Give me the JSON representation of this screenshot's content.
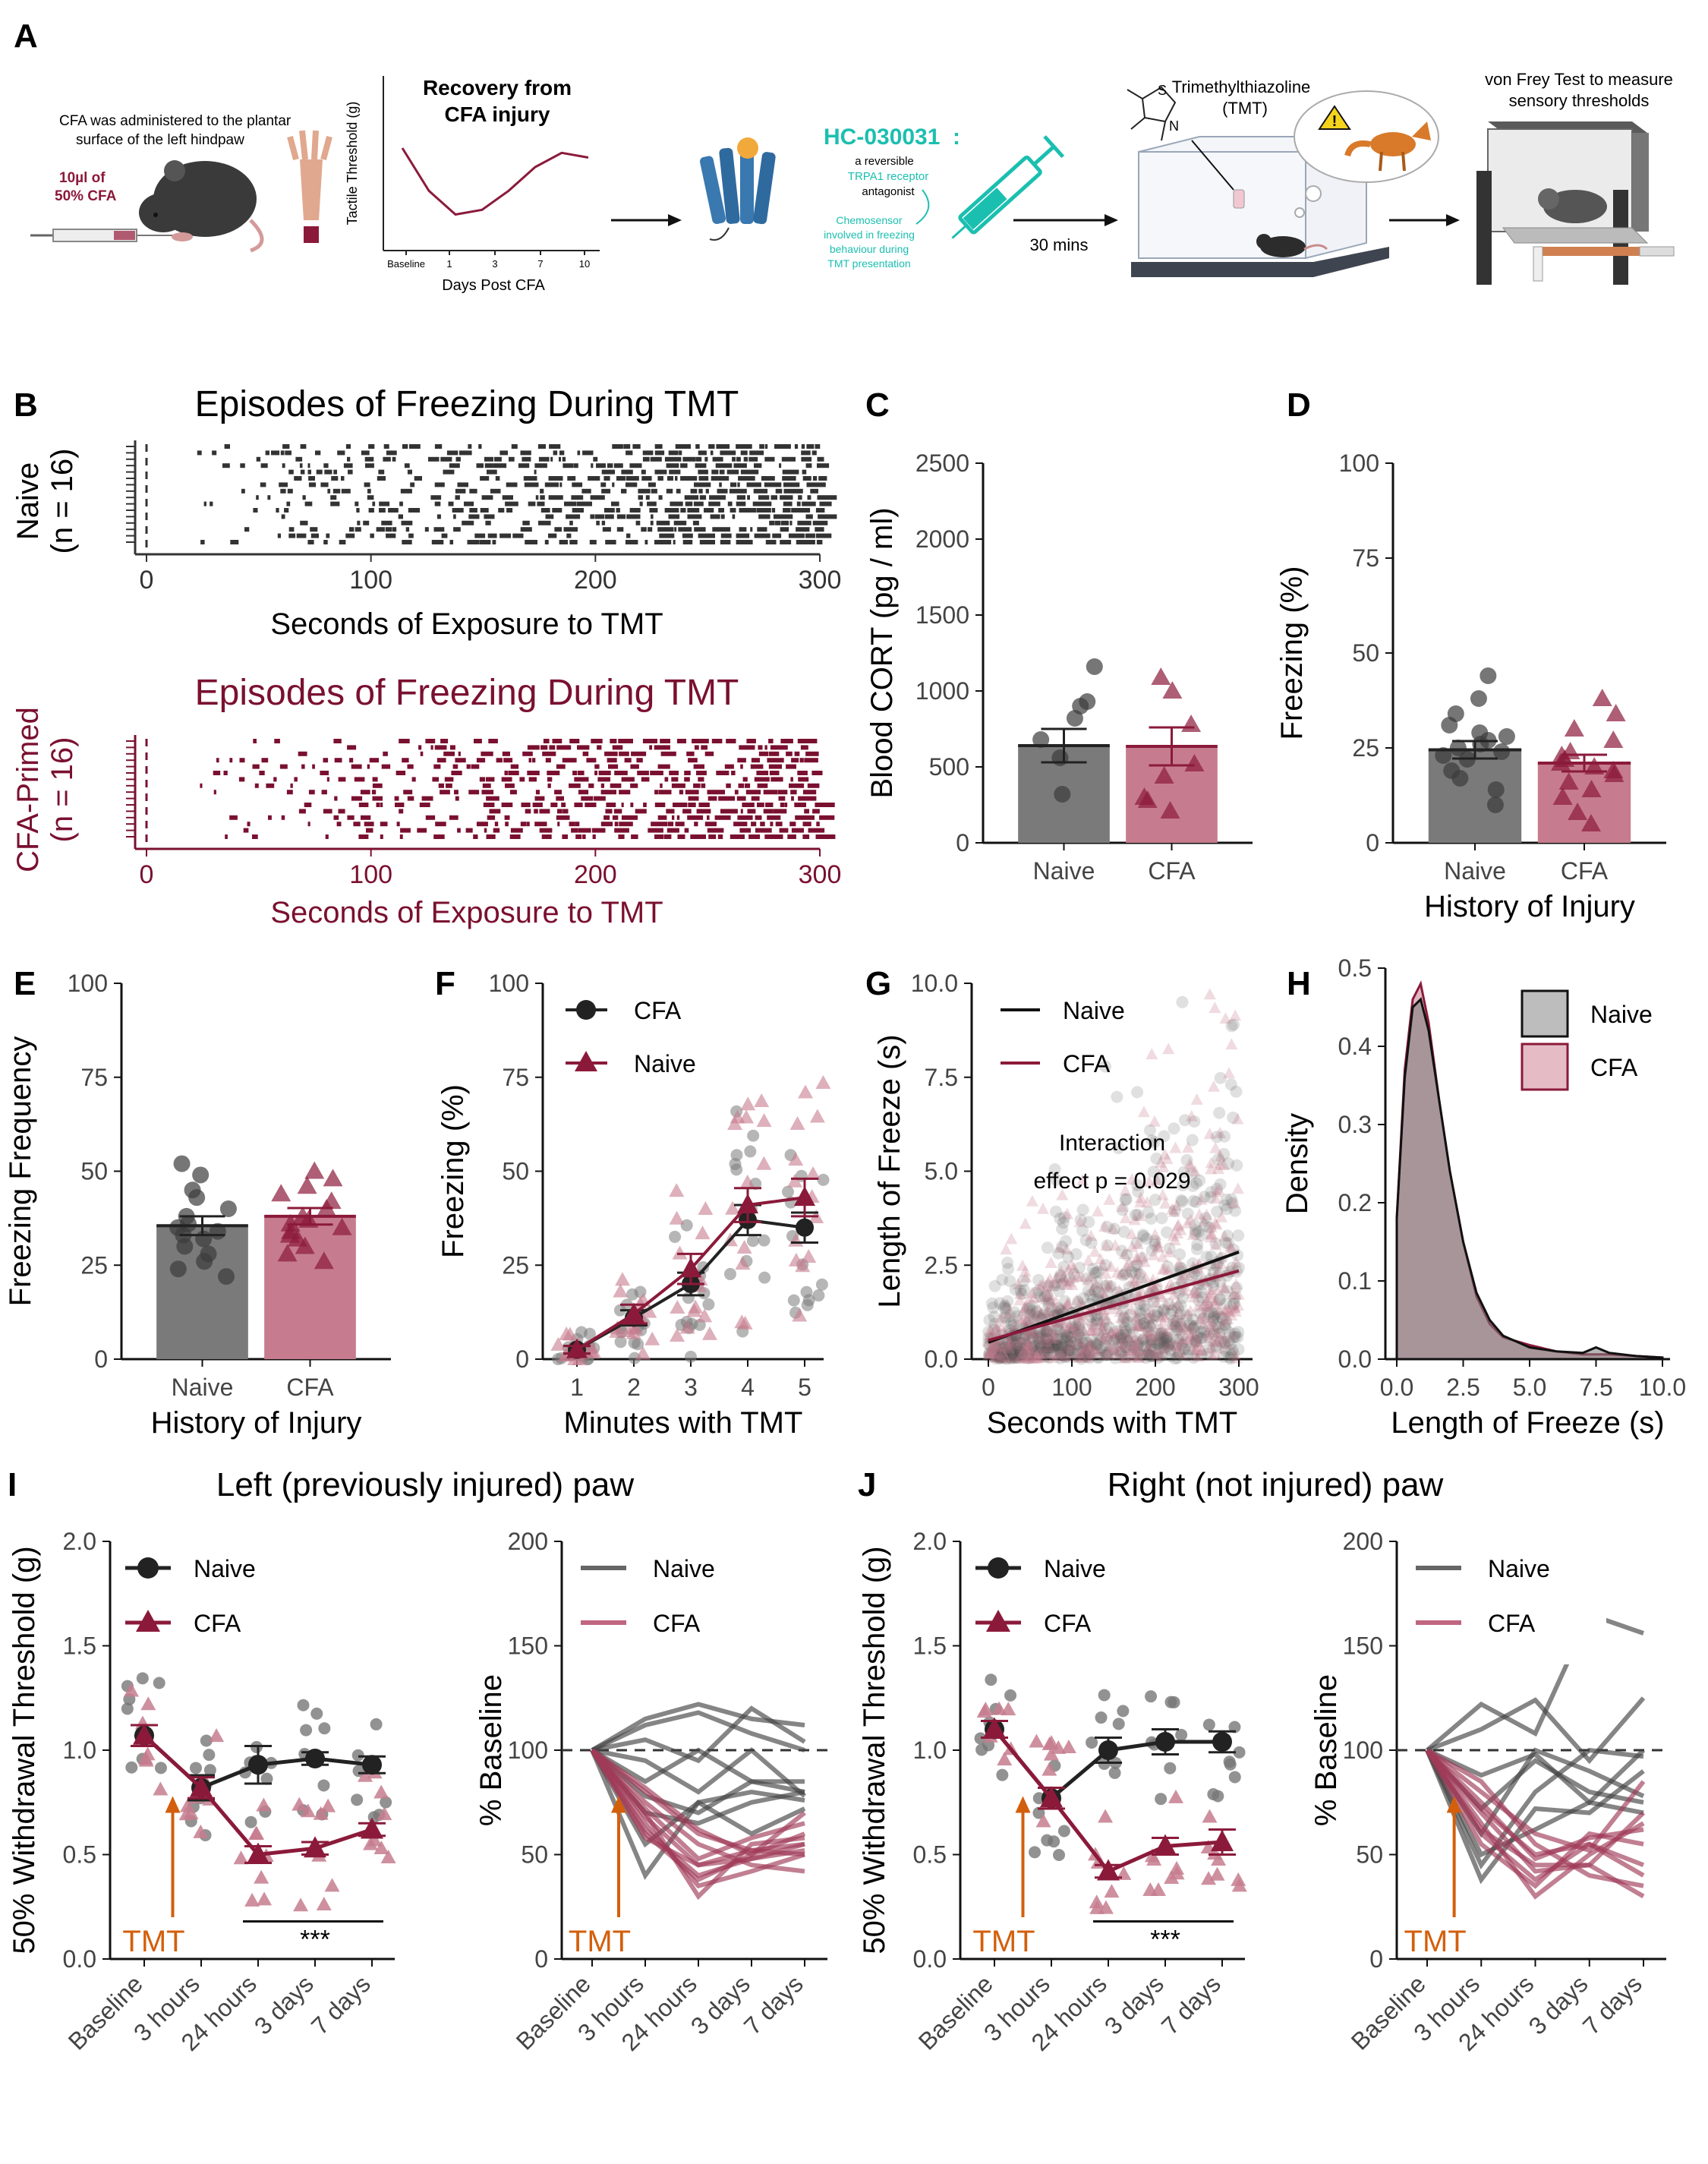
{
  "figure": {
    "panel_letters": [
      "A",
      "B",
      "C",
      "D",
      "E",
      "F",
      "G",
      "H",
      "I",
      "J"
    ],
    "colors": {
      "naive": "#3c3c3c",
      "cfa": "#8b1a3a",
      "naive_fill": "#7a7a7a",
      "cfa_fill": "#c67c8e",
      "tmt": "#d35f0c",
      "teal": "#1bbfb0",
      "dark_red": "#7a1030"
    }
  },
  "schematic": {
    "cfa_text_1": "CFA was administered to the plantar",
    "cfa_text_2": "surface of the left hindpaw",
    "cfa_word": "CFA",
    "dose_1": "10µl of",
    "dose_2": "50% CFA",
    "recovery_title_1": "Recovery from",
    "recovery_title_2": "CFA injury",
    "recovery_ylabel": "Tactile Threshold (g)",
    "recovery_xlabel": "Days Post CFA",
    "recovery_ticks": [
      "Baseline",
      "1",
      "3",
      "7",
      "10"
    ],
    "recovery_curve": [
      1.0,
      0.55,
      0.3,
      0.35,
      0.55,
      0.8,
      0.95,
      0.9
    ],
    "drug_name": "HC-030031",
    "drug_colon": ":",
    "drug_desc_1": "a reversible",
    "drug_desc_2": "TRPA1 receptor",
    "drug_desc_3": "antagonist",
    "chemo_1": "Chemosensor",
    "chemo_2": "involved in freezing",
    "chemo_3": "behaviour during",
    "chemo_4": "TMT presentation",
    "wait_label": "30 mins",
    "tmt_title_1": "Trimethylthiazoline",
    "tmt_title_2": "(TMT)",
    "atom_s": "S",
    "atom_n": "N",
    "warning_mark": "!",
    "vonfrey_1": "von Frey Test to measure",
    "vonfrey_2": "sensory thresholds"
  },
  "chart_data": [
    {
      "id": "B-naive",
      "type": "raster",
      "title": "Episodes of Freezing During TMT",
      "ylabel_1": "Naive",
      "ylabel_2": "(n = 16)",
      "xlabel": "Seconds of Exposure to TMT",
      "xticks": [
        0,
        100,
        200,
        300
      ],
      "xlim": [
        0,
        300
      ],
      "n_rows": 16
    },
    {
      "id": "B-cfa",
      "type": "raster",
      "title": "Episodes of Freezing During TMT",
      "ylabel_1": "CFA-Primed",
      "ylabel_2": "(n = 16)",
      "xlabel": "Seconds of Exposure to TMT",
      "xticks": [
        0,
        100,
        200,
        300
      ],
      "xlim": [
        0,
        300
      ],
      "n_rows": 16
    },
    {
      "id": "C",
      "type": "bar",
      "ylabel": "Blood CORT (pg / ml)",
      "categories": [
        "Naive",
        "CFA"
      ],
      "values": [
        640,
        635
      ],
      "sem": [
        110,
        125
      ],
      "ylim": [
        0,
        2500
      ],
      "yticks": [
        0,
        500,
        1000,
        1500,
        2000,
        2500
      ],
      "points": [
        [
          1160,
          930,
          900,
          820,
          680,
          560,
          320
        ],
        [
          1090,
          1000,
          780,
          520,
          440,
          300,
          280,
          210
        ]
      ]
    },
    {
      "id": "D",
      "type": "bar",
      "ylabel": "Freezing (%)",
      "xlabel": "History of Injury",
      "categories": [
        "Naive",
        "CFA"
      ],
      "values": [
        24.5,
        21
      ],
      "sem": [
        2.3,
        2.2
      ],
      "ylim": [
        0,
        100
      ],
      "yticks": [
        0,
        25,
        50,
        75,
        100
      ],
      "points": [
        [
          44,
          38,
          34,
          31,
          29,
          28,
          27,
          26,
          25,
          24,
          23,
          22,
          19,
          17,
          14,
          10
        ],
        [
          38,
          34,
          30,
          27,
          24,
          23,
          22,
          21,
          20,
          19,
          18,
          16,
          14,
          12,
          8,
          5
        ]
      ]
    },
    {
      "id": "E",
      "type": "bar",
      "ylabel": "Freezing Frequency",
      "xlabel": "History of Injury",
      "categories": [
        "Naive",
        "CFA"
      ],
      "values": [
        35.5,
        38
      ],
      "sem": [
        2.5,
        2.2
      ],
      "ylim": [
        0,
        100
      ],
      "yticks": [
        0,
        25,
        50,
        75,
        100
      ],
      "points": [
        [
          52,
          49,
          45,
          43,
          40,
          38,
          36,
          35,
          34,
          33,
          32,
          30,
          28,
          26,
          24,
          22
        ],
        [
          50,
          48,
          46,
          44,
          42,
          40,
          38,
          37,
          36,
          35,
          34,
          33,
          32,
          30,
          28,
          26
        ]
      ]
    },
    {
      "id": "F",
      "type": "line",
      "ylabel": "Freezing (%)",
      "xlabel": "Minutes with TMT",
      "x": [
        1,
        2,
        3,
        4,
        5
      ],
      "ylim": [
        0,
        100
      ],
      "yticks": [
        0,
        25,
        50,
        75,
        100
      ],
      "legend_position": "top-left",
      "series": [
        {
          "name": "CFA",
          "values": [
            2.5,
            11,
            20,
            37,
            35
          ],
          "sem": [
            1,
            2,
            3,
            4,
            4
          ]
        },
        {
          "name": "Naive",
          "values": [
            2.5,
            12,
            24,
            41,
            43
          ],
          "sem": [
            1,
            2.5,
            4,
            4.5,
            5
          ]
        }
      ]
    },
    {
      "id": "G",
      "type": "scatter",
      "ylabel": "Length of Freeze (s)",
      "xlabel": "Seconds with TMT",
      "annotation_1": "Interaction",
      "annotation_2": "effect p = 0.029",
      "xlim": [
        0,
        300
      ],
      "ylim": [
        0,
        10
      ],
      "xticks": [
        0,
        100,
        200,
        300
      ],
      "yticks": [
        "0.0",
        "2.5",
        "5.0",
        "7.5",
        "10.0"
      ],
      "series": [
        {
          "name": "Naive",
          "fit": [
            [
              0,
              0.45
            ],
            [
              300,
              2.85
            ]
          ]
        },
        {
          "name": "CFA",
          "fit": [
            [
              0,
              0.5
            ],
            [
              300,
              2.35
            ]
          ]
        }
      ]
    },
    {
      "id": "H",
      "type": "area",
      "ylabel": "Density",
      "xlabel": "Length of Freeze (s)",
      "xlim": [
        0,
        10
      ],
      "ylim": [
        0,
        0.5
      ],
      "xticks": [
        "0.0",
        "2.5",
        "5.0",
        "7.5",
        "10.0"
      ],
      "yticks": [
        "0.0",
        "0.1",
        "0.2",
        "0.3",
        "0.4",
        "0.5"
      ],
      "x": [
        0,
        0.3,
        0.6,
        0.9,
        1.2,
        1.6,
        2.0,
        2.5,
        3.0,
        3.5,
        4.0,
        5.0,
        6.0,
        7.0,
        7.5,
        8.0,
        9.0,
        10.0
      ],
      "series": [
        {
          "name": "Naive",
          "values": [
            0.18,
            0.36,
            0.45,
            0.46,
            0.42,
            0.33,
            0.24,
            0.15,
            0.085,
            0.05,
            0.03,
            0.015,
            0.01,
            0.008,
            0.015,
            0.008,
            0.004,
            0.002
          ]
        },
        {
          "name": "CFA",
          "values": [
            0.18,
            0.37,
            0.46,
            0.48,
            0.43,
            0.33,
            0.24,
            0.15,
            0.08,
            0.045,
            0.028,
            0.018,
            0.01,
            0.006,
            0.006,
            0.006,
            0.004,
            0.002
          ]
        }
      ]
    },
    {
      "id": "I-left",
      "type": "line",
      "title": "Left (previously injured) paw",
      "ylabel": "50% Withdrawal Threshold (g)",
      "categories": [
        "Baseline",
        "3 hours",
        "24 hours",
        "3 days",
        "7 days"
      ],
      "ylim": [
        0,
        2
      ],
      "yticks": [
        "0.0",
        "0.5",
        "1.0",
        "1.5",
        "2.0"
      ],
      "arrow_label": "TMT",
      "significance": "***",
      "series": [
        {
          "name": "Naive",
          "values": [
            1.07,
            0.82,
            0.93,
            0.96,
            0.93
          ],
          "sem": [
            0.05,
            0.06,
            0.09,
            0.03,
            0.04
          ]
        },
        {
          "name": "CFA",
          "values": [
            1.07,
            0.82,
            0.5,
            0.53,
            0.62
          ],
          "sem": [
            0.05,
            0.05,
            0.04,
            0.03,
            0.03
          ]
        }
      ]
    },
    {
      "id": "I-right",
      "type": "line",
      "ylabel": "% Baseline",
      "categories": [
        "Baseline",
        "3 hours",
        "24 hours",
        "3 days",
        "7 days"
      ],
      "ylim": [
        0,
        200
      ],
      "yticks": [
        "0",
        "50",
        "100",
        "150",
        "200"
      ],
      "arrow_label": "TMT",
      "series": [
        {
          "name": "Naive",
          "lines": [
            [
              100,
              115,
              122,
              115,
              112
            ],
            [
              100,
              112,
              118,
              108,
              100
            ],
            [
              100,
              105,
              95,
              120,
              104
            ],
            [
              100,
              95,
              80,
              100,
              78
            ],
            [
              100,
              85,
              100,
              85,
              85
            ],
            [
              100,
              78,
              70,
              85,
              80
            ],
            [
              100,
              70,
              65,
              75,
              80
            ],
            [
              100,
              55,
              75,
              60,
              72
            ],
            [
              100,
              40,
              75,
              80,
              76
            ]
          ]
        },
        {
          "name": "CFA",
          "lines": [
            [
              100,
              72,
              48,
              58,
              65
            ],
            [
              100,
              68,
              45,
              52,
              55
            ],
            [
              100,
              80,
              60,
              52,
              50
            ],
            [
              100,
              62,
              40,
              48,
              52
            ],
            [
              100,
              75,
              55,
              45,
              42
            ],
            [
              100,
              60,
              38,
              50,
              60
            ],
            [
              100,
              70,
              30,
              55,
              58
            ],
            [
              100,
              82,
              62,
              50,
              70
            ],
            [
              100,
              58,
              45,
              48,
              55
            ],
            [
              100,
              65,
              35,
              42,
              50
            ]
          ]
        }
      ]
    },
    {
      "id": "J-left",
      "type": "line",
      "title": "Right (not injured) paw",
      "ylabel": "50% Withdrawal Threshold (g)",
      "categories": [
        "Baseline",
        "3 hours",
        "24 hours",
        "3 days",
        "7 days"
      ],
      "ylim": [
        0,
        2
      ],
      "yticks": [
        "0.0",
        "0.5",
        "1.0",
        "1.5",
        "2.0"
      ],
      "arrow_label": "TMT",
      "significance": "***",
      "series": [
        {
          "name": "Naive",
          "values": [
            1.1,
            0.77,
            1.0,
            1.04,
            1.04
          ],
          "sem": [
            0.04,
            0.05,
            0.06,
            0.06,
            0.05
          ]
        },
        {
          "name": "CFA",
          "values": [
            1.1,
            0.77,
            0.42,
            0.54,
            0.56
          ],
          "sem": [
            0.04,
            0.05,
            0.03,
            0.04,
            0.06
          ]
        }
      ]
    },
    {
      "id": "J-right",
      "type": "line",
      "ylabel": "% Baseline",
      "categories": [
        "Baseline",
        "3 hours",
        "24 hours",
        "3 days",
        "7 days"
      ],
      "ylim": [
        0,
        200
      ],
      "yticks": [
        "0",
        "50",
        "100",
        "150",
        "200"
      ],
      "arrow_label": "TMT",
      "series": [
        {
          "name": "Naive",
          "lines": [
            [
              100,
              122,
              108,
              165,
              156
            ],
            [
              100,
              110,
              124,
              95,
              125
            ],
            [
              100,
              88,
              98,
              75,
              100
            ],
            [
              100,
              72,
              95,
              80,
              75
            ],
            [
              100,
              60,
              100,
              90,
              78
            ],
            [
              100,
              45,
              80,
              100,
              97
            ],
            [
              100,
              38,
              72,
              70,
              90
            ],
            [
              100,
              50,
              62,
              75,
              70
            ]
          ]
        },
        {
          "name": "CFA",
          "lines": [
            [
              100,
              60,
              38,
              55,
              45
            ],
            [
              100,
              75,
              48,
              58,
              62
            ],
            [
              100,
              85,
              55,
              40,
              35
            ],
            [
              100,
              65,
              30,
              50,
              65
            ],
            [
              100,
              70,
              42,
              45,
              70
            ],
            [
              100,
              80,
              60,
              52,
              85
            ],
            [
              100,
              55,
              35,
              60,
              55
            ],
            [
              100,
              62,
              45,
              45,
              30
            ],
            [
              100,
              72,
              50,
              55,
              40
            ]
          ]
        }
      ]
    }
  ]
}
